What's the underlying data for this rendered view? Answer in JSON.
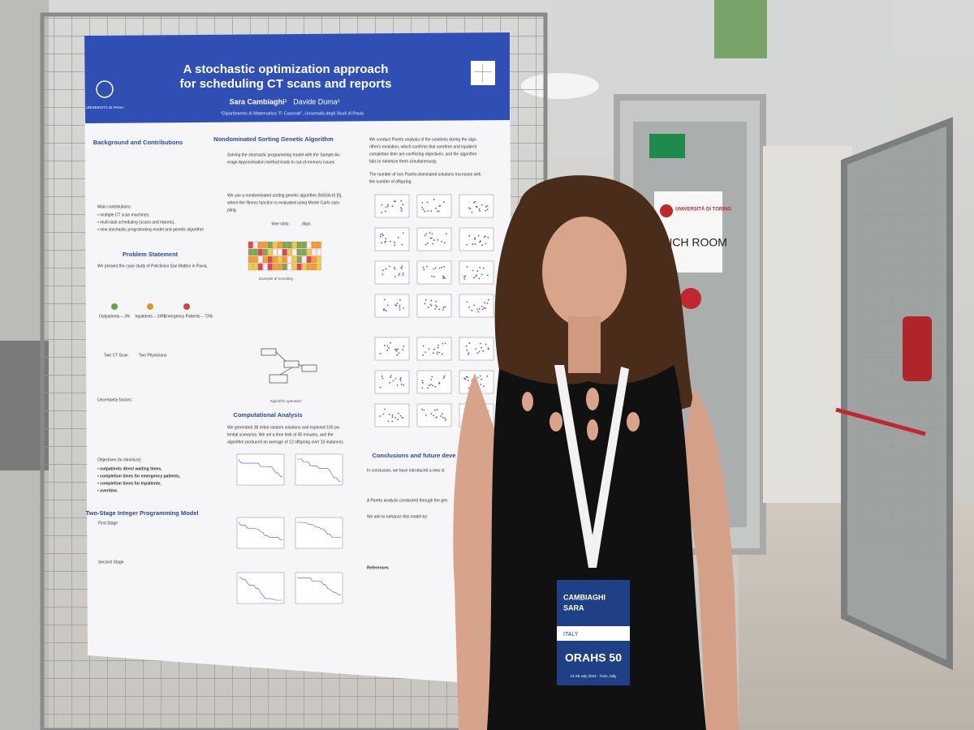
{
  "poster": {
    "title": [
      "A stochastic optimization approach",
      "for scheduling CT scans and reports"
    ],
    "authors": [
      "Sara Cambiaghi¹",
      "Davide Duma¹"
    ],
    "affiliation": "¹Dipartimento di Matematica \"F. Casorati\", Università degli Studi di Pavia",
    "logo_text": "UNIVERSITÀ DI PAVIA",
    "sections": {
      "background": {
        "heading": "Background and Contributions",
        "lines": [
          "Main contributions:",
          "• multiple CT scan machines,",
          "• multi-task scheduling (scans and reports),",
          "• new stochastic programming model and genetic algorithm"
        ]
      },
      "problem": {
        "heading": "Problem Statement",
        "lines": [
          "We present the case study of Policlinico San Matteo in Pavia,",
          "Outpatients – 3%",
          "Inpatients – 24%",
          "Emergency Patients – 73%",
          "Two CT Scan",
          "Two Physicians",
          "Uncertainty factors:",
          "Objectives (to minimize):",
          "• outpatients direct waiting times,",
          "• completion times for emergency patients,",
          "• completion times for inpatients,",
          "• overtime."
        ]
      },
      "model": {
        "heading": "Two-Stage Integer Programming Model",
        "lines": [
          "First Stage",
          "Second Stage"
        ]
      },
      "nsga": {
        "heading": "Nondominated Sorting Genetic Algorithm",
        "lines": [
          "Solving the stochastic programming model with the Sample Av-",
          "erage Approximation method leads to out-of-memory issues",
          "We use a nondominated sorting genetic algorithm (NSGA-II) [5],",
          "where the fitness function is evaluated using Monte Carlo sam-",
          "pling."
        ],
        "labels": [
          "time slots",
          "days"
        ],
        "captions": [
          "Example of encoding",
          "Algorithm operation"
        ]
      },
      "computational": {
        "heading": "Computational Analysis",
        "lines": [
          "We generated 38 initial random solutions and explored 100 po-",
          "tential scenarios. We set a time limit of 45 minutes, and the",
          "algorithm produced an average of 12 offspring over 10 instances."
        ]
      },
      "pareto": {
        "lines": [
          "We conduct Pareto analysis of the solutions during the algo-",
          "rithm's evolution, which confirms that overtime and inpatient",
          "completion time are conflicting objectives, and the algorithm",
          "fails to minimize them simultaneously.",
          "The number of non Pareto-dominated solutions increases with",
          "the number of offspring."
        ]
      },
      "conclusions": {
        "heading": "Conclusions and future deve",
        "lines": [
          "In conclusion, we have introduced a new st",
          "A Pareto analysis conducted through the gen",
          "We aim to enhance this model by:"
        ]
      },
      "references": {
        "heading": "References"
      }
    }
  },
  "badge": {
    "surname": "CAMBIAGHI",
    "name": "SARA",
    "country": "ITALY",
    "event": "ORAHS 50",
    "dates": "14-28 July 2024 - Turin, Italy"
  },
  "signs": {
    "university": "UNIVERSITÀ DI TORINO",
    "room": "UNCH ROOM"
  }
}
